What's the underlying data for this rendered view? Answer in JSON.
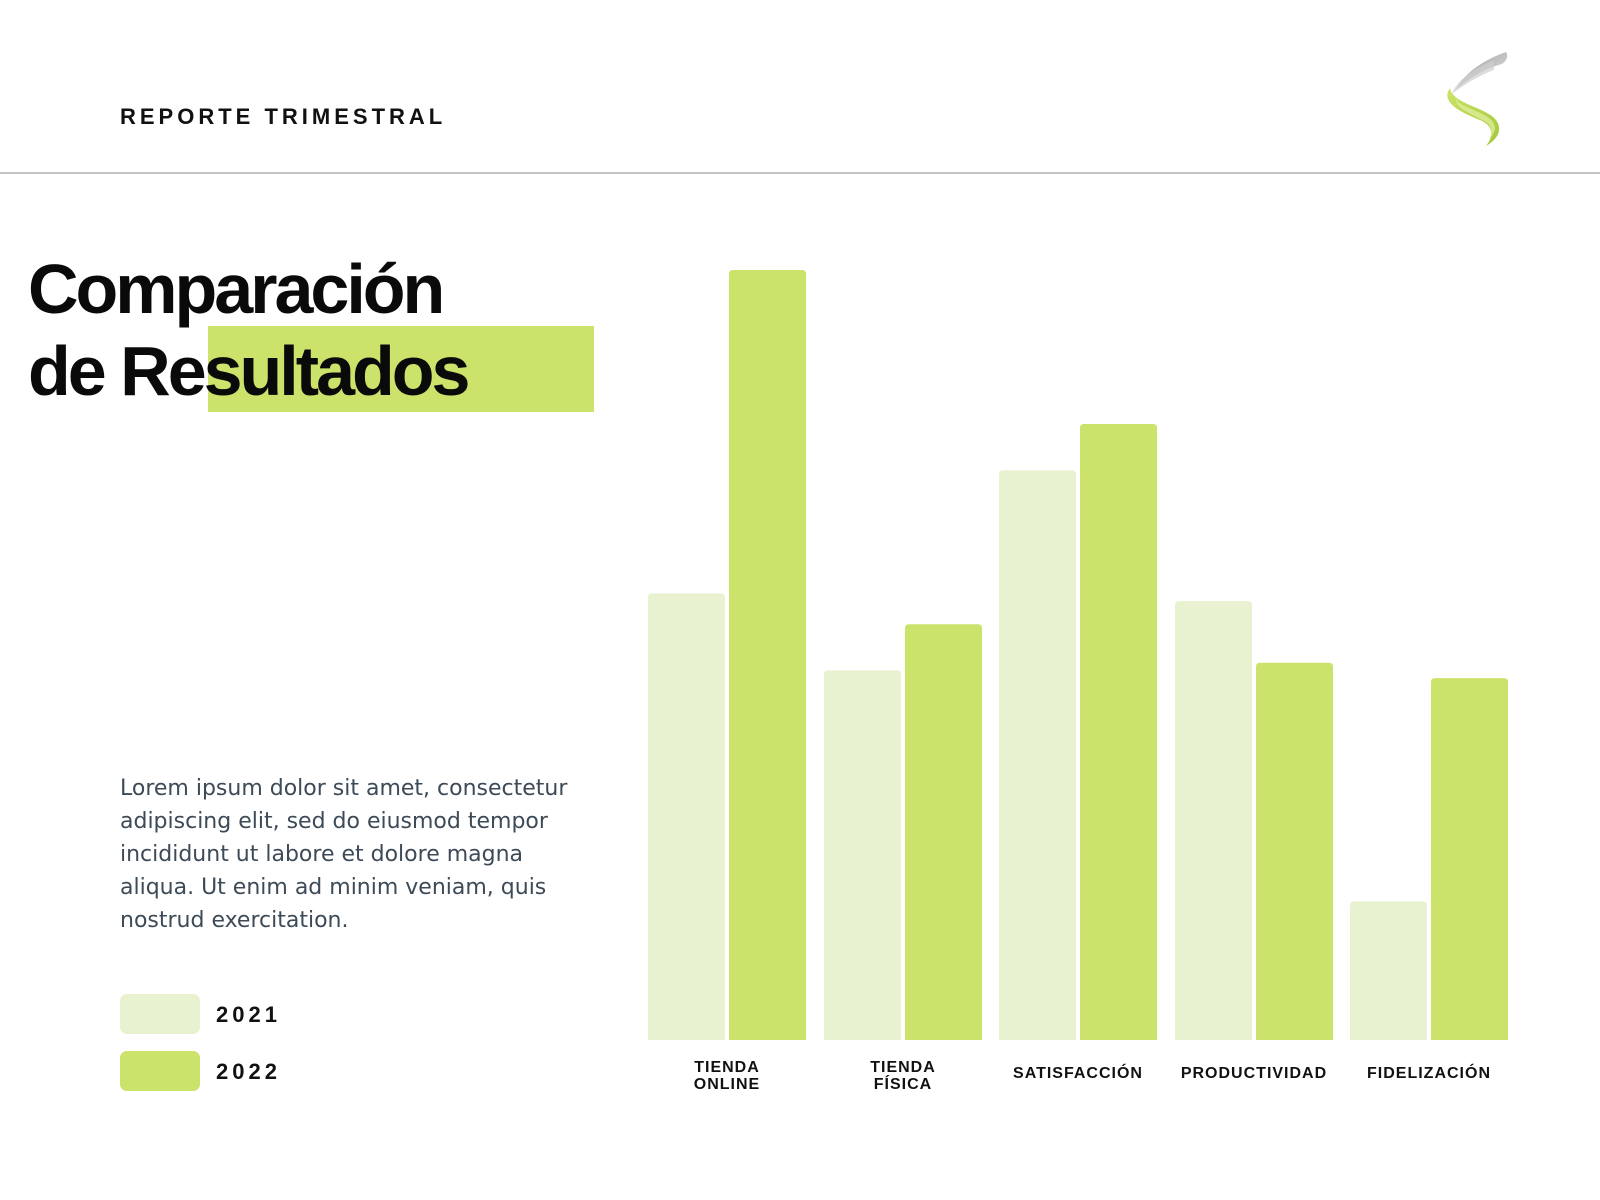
{
  "header": {
    "report_label": "REPORTE TRIMESTRAL",
    "logo_icon": "swoosh-logo-icon"
  },
  "title": {
    "line1": "Comparación",
    "line2": "de Resultados",
    "highlight_color": "#cbe36a"
  },
  "description": "Lorem ipsum dolor sit amet, consectetur adipiscing elit, sed do eiusmod tempor incididunt ut labore et dolore magna aliqua. Ut enim ad minim veniam, quis nostrud exercitation.",
  "legend": [
    {
      "label": "2021",
      "color": "#e9f2d0"
    },
    {
      "label": "2022",
      "color": "#cbe36a"
    }
  ],
  "chart_data": {
    "type": "bar",
    "categories": [
      [
        "TIENDA",
        "ONLINE"
      ],
      [
        "TIENDA",
        "FÍSICA"
      ],
      [
        "SATISFACCIÓN"
      ],
      [
        "PRODUCTIVIDAD"
      ],
      [
        "FIDELIZACIÓN"
      ]
    ],
    "series": [
      {
        "name": "2021",
        "values": [
          58,
          48,
          74,
          57,
          18
        ],
        "color": "#e9f2d0"
      },
      {
        "name": "2022",
        "values": [
          100,
          54,
          80,
          49,
          47
        ],
        "color": "#cbe36a"
      }
    ],
    "ylim": [
      0,
      100
    ],
    "grid": false,
    "axis_labels_visible": false,
    "legend_position": "left"
  }
}
